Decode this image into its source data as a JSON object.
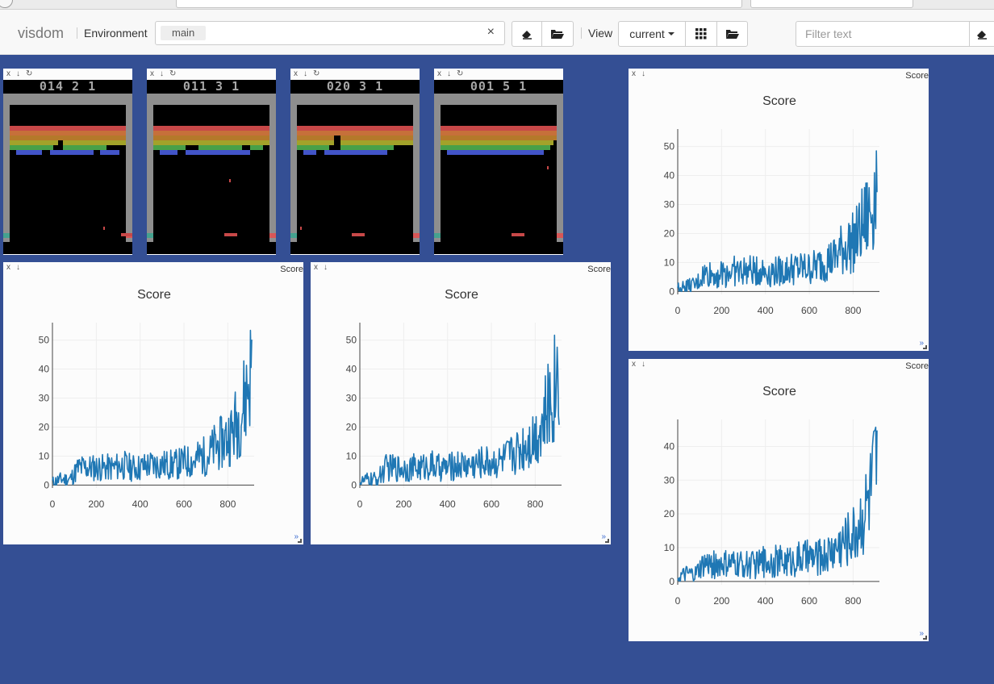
{
  "navbar": {
    "brand": "visdom",
    "environment_label": "Environment",
    "environment_tag": "main",
    "clear_symbol": "×",
    "view_label": "View",
    "view_selected": "current",
    "filter_placeholder": "Filter text"
  },
  "pane_controls": {
    "close": "x",
    "download": "↓",
    "reset": "↻",
    "resize_hint": "»"
  },
  "atari_panes": [
    {
      "score_text": "014 2 1"
    },
    {
      "score_text": "011 3 1"
    },
    {
      "score_text": "020 3 1"
    },
    {
      "score_text": "001 5 1"
    }
  ],
  "plot_panes": [
    {
      "title_tab": "Score"
    },
    {
      "title_tab": "Score"
    },
    {
      "title_tab": "Score"
    },
    {
      "title_tab": "Score"
    }
  ],
  "chart_data": [
    {
      "type": "line",
      "title": "Score",
      "xlabel": "",
      "ylabel": "",
      "x_ticks": [
        0,
        200,
        400,
        600,
        800
      ],
      "y_ticks": [
        0,
        10,
        20,
        30,
        40,
        50
      ],
      "xlim": [
        0,
        920
      ],
      "ylim": [
        -1,
        56
      ],
      "grid": true,
      "color": "#1f77b4",
      "x": [
        0,
        40,
        80,
        120,
        160,
        200,
        240,
        280,
        320,
        360,
        400,
        440,
        480,
        520,
        560,
        600,
        640,
        680,
        700,
        720,
        740,
        760,
        780,
        800,
        820,
        840,
        860,
        880,
        900,
        910
      ],
      "y": [
        1,
        2,
        2,
        6,
        6,
        6,
        6,
        6,
        7,
        6,
        6,
        7,
        7,
        7,
        7,
        8,
        8,
        10,
        10,
        11,
        13,
        14,
        15,
        17,
        18,
        22,
        25,
        30,
        38,
        40
      ]
    },
    {
      "type": "line",
      "title": "Score",
      "xlabel": "",
      "ylabel": "",
      "x_ticks": [
        0,
        200,
        400,
        600,
        800
      ],
      "y_ticks": [
        0,
        10,
        20,
        30,
        40,
        50
      ],
      "xlim": [
        0,
        920
      ],
      "ylim": [
        -1,
        56
      ],
      "grid": true,
      "color": "#1f77b4",
      "x": [
        0,
        40,
        80,
        120,
        160,
        200,
        240,
        280,
        320,
        360,
        400,
        440,
        480,
        520,
        560,
        600,
        640,
        680,
        700,
        720,
        740,
        760,
        780,
        800,
        820,
        840,
        860,
        880,
        900,
        910
      ],
      "y": [
        1,
        2,
        2,
        6,
        6,
        6,
        6,
        6,
        7,
        6,
        6,
        7,
        7,
        7,
        8,
        8,
        8,
        10,
        11,
        12,
        13,
        15,
        16,
        17,
        20,
        22,
        27,
        31,
        39,
        42
      ]
    },
    {
      "type": "line",
      "title": "Score",
      "xlabel": "",
      "ylabel": "",
      "x_ticks": [
        0,
        200,
        400,
        600,
        800
      ],
      "y_ticks": [
        0,
        10,
        20,
        30,
        40,
        50
      ],
      "xlim": [
        0,
        920
      ],
      "ylim": [
        -1,
        56
      ],
      "grid": true,
      "color": "#1f77b4",
      "x": [
        0,
        40,
        80,
        120,
        160,
        200,
        240,
        280,
        320,
        360,
        400,
        440,
        480,
        520,
        560,
        600,
        640,
        680,
        700,
        720,
        740,
        760,
        780,
        800,
        820,
        840,
        860,
        880,
        900,
        910
      ],
      "y": [
        1,
        2,
        2,
        6,
        6,
        6,
        7,
        7,
        7,
        7,
        7,
        7,
        7,
        8,
        8,
        8,
        9,
        11,
        11,
        12,
        14,
        15,
        16,
        17,
        19,
        22,
        25,
        28,
        35,
        38
      ]
    },
    {
      "type": "line",
      "title": "Score",
      "xlabel": "",
      "ylabel": "",
      "x_ticks": [
        0,
        200,
        400,
        600,
        800
      ],
      "y_ticks": [
        0,
        10,
        20,
        30,
        40
      ],
      "xlim": [
        0,
        920
      ],
      "ylim": [
        -1,
        48
      ],
      "grid": true,
      "color": "#1f77b4",
      "x": [
        0,
        40,
        80,
        120,
        160,
        200,
        240,
        280,
        320,
        360,
        400,
        440,
        480,
        520,
        560,
        600,
        640,
        680,
        700,
        720,
        740,
        760,
        780,
        800,
        820,
        840,
        860,
        880,
        900,
        910
      ],
      "y": [
        1,
        2,
        2,
        5,
        5,
        5,
        5,
        5,
        5,
        5,
        6,
        6,
        6,
        6,
        7,
        7,
        7,
        8,
        9,
        10,
        11,
        12,
        13,
        14,
        16,
        19,
        22,
        26,
        32,
        34
      ]
    }
  ]
}
